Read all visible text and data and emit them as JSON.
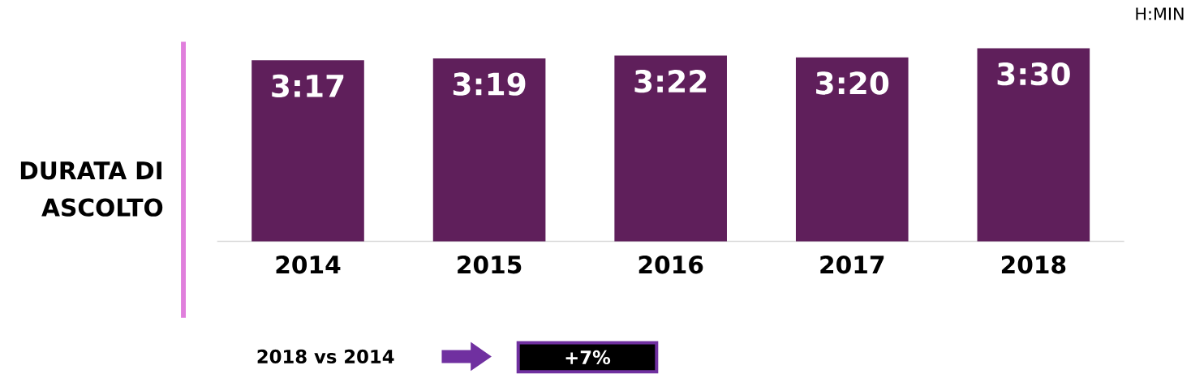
{
  "chart_data": {
    "type": "bar",
    "ylabel": "DURATA DI ASCOLTO",
    "categories": [
      "2014",
      "2015",
      "2016",
      "2017",
      "2018"
    ],
    "values": [
      3.2833,
      3.3167,
      3.3667,
      3.3333,
      3.5
    ],
    "value_labels": [
      "3:17",
      "3:19",
      "3:22",
      "3:20",
      "3:30"
    ],
    "color": "#5f1f5b",
    "annotations": [
      "H:MIN",
      "2018 vs 2014",
      "+7%"
    ]
  }
}
